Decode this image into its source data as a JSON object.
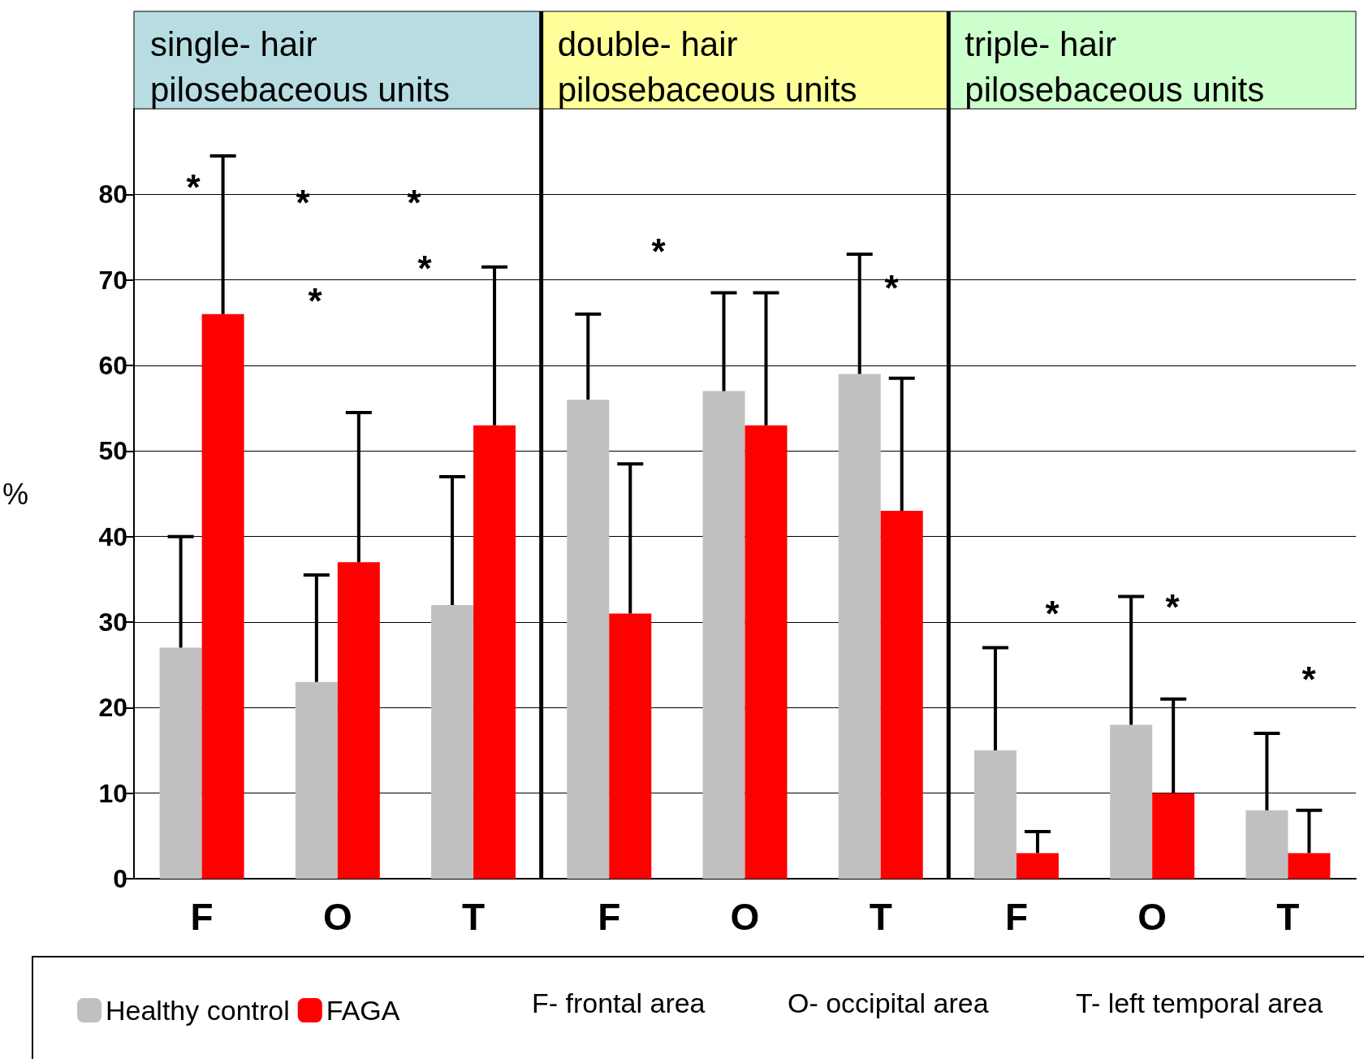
{
  "chart_data": {
    "type": "bar",
    "ylabel": "%",
    "categories": [
      "F",
      "O",
      "T",
      "F",
      "O",
      "T",
      "F",
      "O",
      "T"
    ],
    "series": [
      {
        "name": "Healthy control",
        "color": "#c0c0c0",
        "values": [
          27,
          23,
          32,
          56,
          57,
          59,
          15,
          18,
          8
        ],
        "errors": [
          [
            27,
            40
          ],
          [
            23,
            35.5
          ],
          [
            32,
            47
          ],
          [
            56,
            66
          ],
          [
            57,
            68.5
          ],
          [
            59,
            73
          ],
          [
            15,
            27
          ],
          [
            18,
            33
          ],
          [
            8,
            17
          ]
        ]
      },
      {
        "name": "FAGA",
        "color": "#ff0000",
        "values": [
          66,
          37,
          53,
          31,
          53,
          43,
          3,
          10,
          3
        ],
        "errors": [
          [
            66,
            84.5
          ],
          [
            37,
            54.5
          ],
          [
            53,
            71.5
          ],
          [
            31,
            48.5
          ],
          [
            53,
            68.5
          ],
          [
            43,
            58.5
          ],
          [
            3,
            5.5
          ],
          [
            10,
            21
          ],
          [
            3,
            8
          ]
        ]
      }
    ],
    "ylim": [
      0,
      90
    ],
    "yticks": [
      0,
      10,
      20,
      30,
      40,
      50,
      60,
      70,
      80
    ],
    "grid": "y",
    "legend": "bottom",
    "annotations": [
      "single- hair pilosebaceous units",
      "double- hair pilosebaceous units",
      "triple- hair pilosebaceous units",
      "F- frontal area",
      "O- occipital area",
      "T- left temporal area",
      "*",
      "*",
      "*",
      "*",
      "*",
      "*",
      "*",
      "*",
      "*",
      "*"
    ]
  }
}
